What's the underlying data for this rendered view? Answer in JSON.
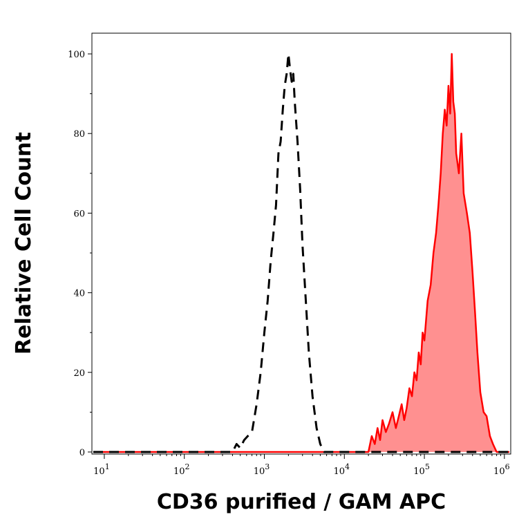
{
  "chart_data": {
    "type": "area",
    "title": "",
    "xlabel": "CD36 purified / GAM APC",
    "ylabel": "Relative Cell Count",
    "x_scale": "log",
    "xlim": [
      7,
      1200000
    ],
    "ylim": [
      0,
      100
    ],
    "x_ticks": [
      {
        "base": "10",
        "exp": "1",
        "value": 10
      },
      {
        "base": "10",
        "exp": "2",
        "value": 100
      },
      {
        "base": "10",
        "exp": "3",
        "value": 1000
      },
      {
        "base": "10",
        "exp": "4",
        "value": 10000
      },
      {
        "base": "10",
        "exp": "5",
        "value": 100000
      },
      {
        "base": "10",
        "exp": "6",
        "value": 1000000
      }
    ],
    "y_ticks": [
      {
        "label": "0",
        "value": 0
      },
      {
        "label": "20",
        "value": 20
      },
      {
        "label": "40",
        "value": 40
      },
      {
        "label": "60",
        "value": 60
      },
      {
        "label": "80",
        "value": 80
      },
      {
        "label": "100",
        "value": 100
      }
    ],
    "grid": false,
    "series": [
      {
        "style": "dashed",
        "color": "#000000",
        "fill": "none",
        "x": [
          400,
          450,
          500,
          560,
          620,
          700,
          800,
          900,
          1000,
          1100,
          1200,
          1300,
          1400,
          1500,
          1600,
          1700,
          1800,
          1900,
          2000,
          2100,
          2200,
          2300,
          2400,
          2600,
          2800,
          3000,
          3300,
          3600,
          4000,
          4500,
          5000,
          5600
        ],
        "values": [
          0,
          2,
          1,
          3,
          4,
          5,
          12,
          20,
          30,
          38,
          48,
          55,
          62,
          75,
          78,
          86,
          92,
          95,
          100,
          96,
          93,
          95,
          88,
          78,
          66,
          52,
          38,
          25,
          14,
          6,
          2,
          0
        ]
      },
      {
        "style": "solid",
        "color": "#ff0000",
        "fill": "#ff9090",
        "x": [
          20000,
          22000,
          24000,
          26000,
          28000,
          30000,
          33000,
          36000,
          40000,
          44000,
          48000,
          52000,
          56000,
          60000,
          65000,
          70000,
          75000,
          80000,
          85000,
          90000,
          95000,
          100000,
          110000,
          120000,
          130000,
          140000,
          150000,
          160000,
          170000,
          180000,
          190000,
          200000,
          210000,
          220000,
          230000,
          240000,
          250000,
          270000,
          290000,
          310000,
          340000,
          370000,
          400000,
          430000,
          460000,
          500000,
          550000,
          600000,
          660000,
          720000,
          800000
        ],
        "values": [
          0,
          4,
          2,
          6,
          3,
          8,
          5,
          7,
          10,
          6,
          9,
          12,
          8,
          11,
          16,
          14,
          20,
          18,
          25,
          22,
          30,
          28,
          38,
          42,
          50,
          55,
          62,
          70,
          80,
          86,
          82,
          92,
          85,
          100,
          88,
          85,
          75,
          70,
          80,
          65,
          60,
          55,
          45,
          35,
          25,
          15,
          10,
          9,
          4,
          2,
          0
        ]
      }
    ]
  }
}
